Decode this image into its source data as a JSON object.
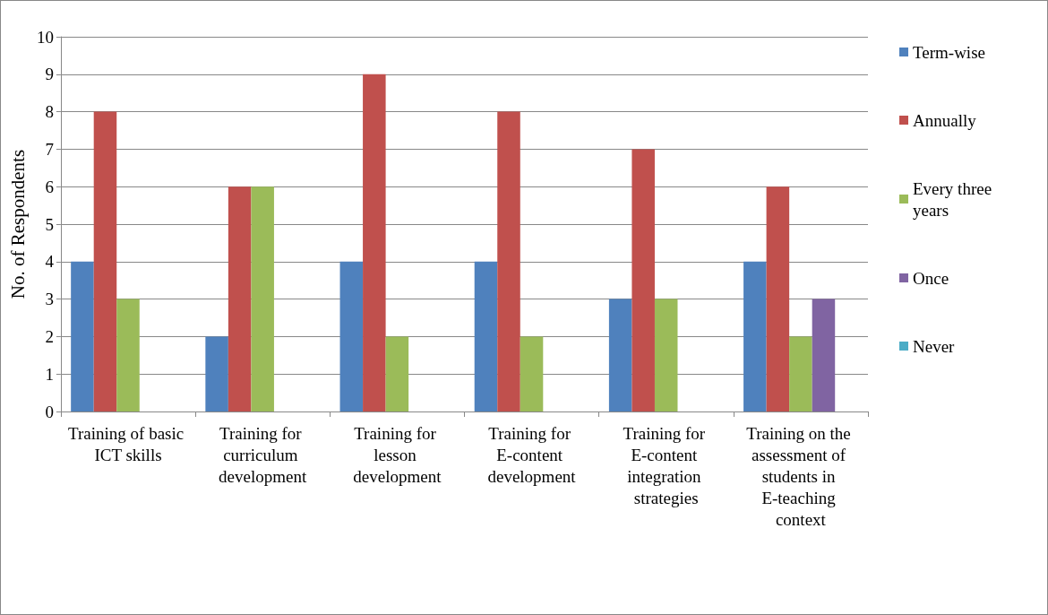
{
  "chart_data": {
    "type": "bar",
    "ylabel": "No. of Respondents",
    "categories": [
      "Training of basic ICT skills",
      "Training for curriculum development",
      "Training for lesson development",
      "Training for E-content development",
      "Training for E-content integration strategies",
      "Training on the assessment of students in E-teaching context"
    ],
    "series": [
      {
        "name": "Term-wise",
        "color": "#4f81bd",
        "values": [
          4,
          2,
          4,
          4,
          3,
          4
        ]
      },
      {
        "name": "Annually",
        "color": "#c0504d",
        "values": [
          8,
          6,
          9,
          8,
          7,
          6
        ]
      },
      {
        "name": "Every three years",
        "color": "#9bbb59",
        "values": [
          3,
          6,
          2,
          2,
          3,
          2
        ]
      },
      {
        "name": "Once",
        "color": "#8064a2",
        "values": [
          0,
          0,
          0,
          0,
          0,
          3
        ]
      },
      {
        "name": "Never",
        "color": "#4bacc6",
        "values": [
          0,
          0,
          0,
          0,
          0,
          0
        ]
      }
    ],
    "ylim": [
      0,
      10
    ],
    "yticks": [
      0,
      1,
      2,
      3,
      4,
      5,
      6,
      7,
      8,
      9,
      10
    ],
    "grid": "y",
    "legend": "right"
  }
}
